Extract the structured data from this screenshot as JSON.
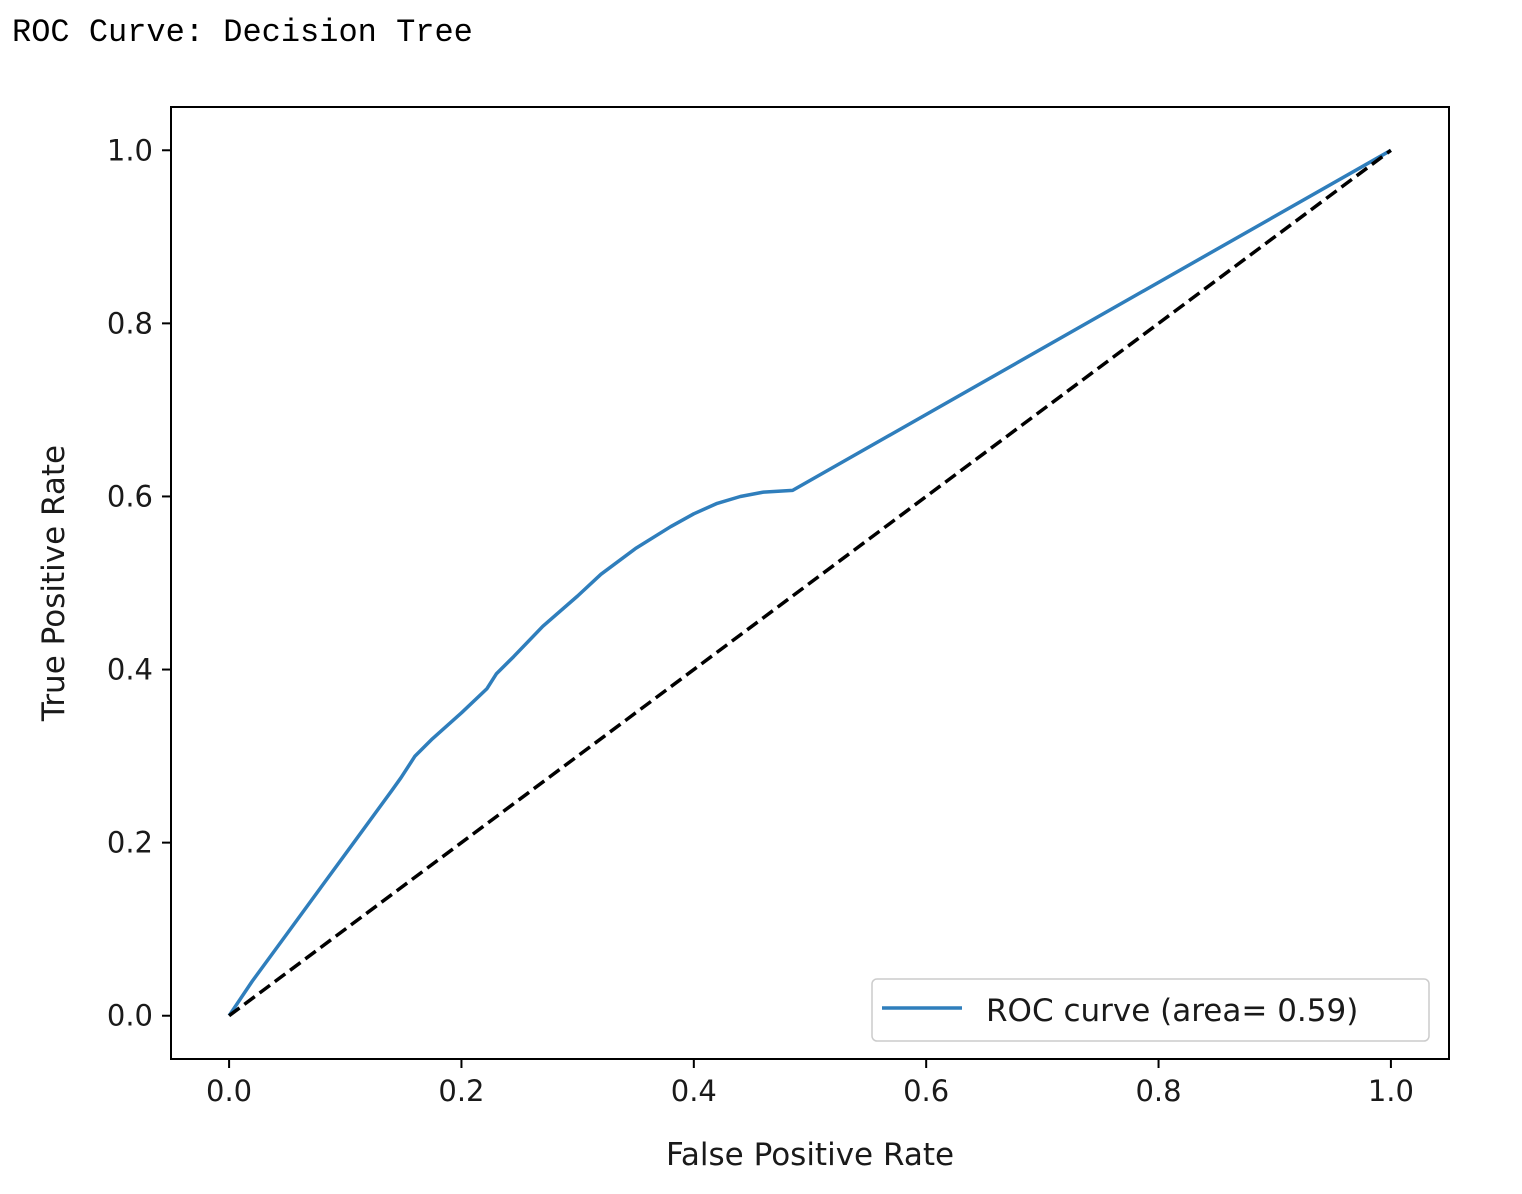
{
  "page": {
    "title": "ROC Curve: Decision Tree"
  },
  "colors": {
    "roc": "#2f7ebc",
    "baseline": "#000000",
    "frame": "#000000"
  },
  "chart_data": {
    "type": "line",
    "xlabel": "False Positive Rate",
    "ylabel": "True Positive Rate",
    "xlim": [
      -0.05,
      1.05
    ],
    "ylim": [
      -0.05,
      1.05
    ],
    "xticks": [
      0.0,
      0.2,
      0.4,
      0.6,
      0.8,
      1.0
    ],
    "yticks": [
      0.0,
      0.2,
      0.4,
      0.6,
      0.8,
      1.0
    ],
    "xtick_labels": [
      "0.0",
      "0.2",
      "0.4",
      "0.6",
      "0.8",
      "1.0"
    ],
    "ytick_labels": [
      "0.0",
      "0.2",
      "0.4",
      "0.6",
      "0.8",
      "1.0"
    ],
    "grid": false,
    "legend_position": "lower-right",
    "series": [
      {
        "name": "ROC curve (area= 0.59)",
        "style": "solid",
        "x": [
          0.0,
          0.02,
          0.05,
          0.08,
          0.11,
          0.14,
          0.148,
          0.16,
          0.175,
          0.2,
          0.222,
          0.23,
          0.245,
          0.27,
          0.3,
          0.32,
          0.35,
          0.38,
          0.4,
          0.42,
          0.44,
          0.46,
          0.485,
          1.0
        ],
        "y": [
          0.0,
          0.04,
          0.095,
          0.15,
          0.205,
          0.26,
          0.275,
          0.3,
          0.32,
          0.35,
          0.378,
          0.395,
          0.415,
          0.45,
          0.485,
          0.51,
          0.54,
          0.565,
          0.58,
          0.592,
          0.6,
          0.605,
          0.607,
          1.0
        ]
      },
      {
        "name": "",
        "style": "dashed",
        "x": [
          0.0,
          1.0
        ],
        "y": [
          0.0,
          1.0
        ]
      }
    ]
  }
}
